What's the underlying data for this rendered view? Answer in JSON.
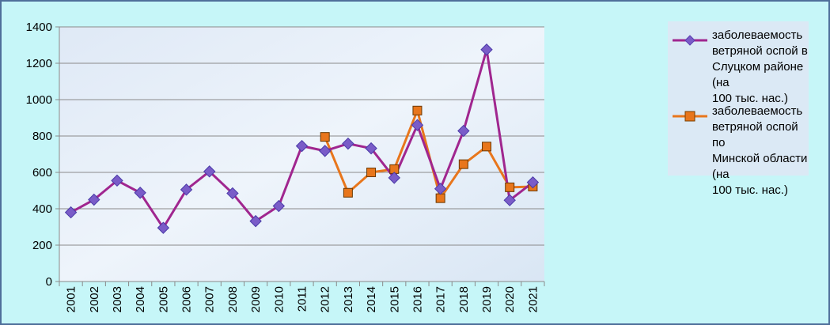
{
  "chart_data": {
    "type": "line",
    "title": "",
    "xlabel": "",
    "ylabel": "",
    "ylim": [
      0,
      1400
    ],
    "yticks": [
      "0",
      "200",
      "400",
      "600",
      "800",
      "1000",
      "1200",
      "1400"
    ],
    "categories": [
      "2001",
      "2002",
      "2003",
      "2004",
      "2005",
      "2006",
      "2007",
      "2008",
      "2009",
      "2010",
      "2011",
      "2012",
      "2013",
      "2014",
      "2015",
      "2016",
      "2017",
      "2018",
      "2019",
      "2020",
      "2021"
    ],
    "grid": true,
    "legend_position": "right",
    "series": [
      {
        "name": "заболеваемость ветряной оспой в Слуцком районе (на 100 тыс. нас.)",
        "color": "#a0268f",
        "marker": "diamond",
        "marker_fill": "#7a5cc8",
        "values": [
          380,
          450,
          555,
          488,
          295,
          505,
          605,
          485,
          332,
          415,
          745,
          718,
          758,
          732,
          570,
          860,
          510,
          828,
          1275,
          447,
          545
        ]
      },
      {
        "name": "заболеваемость ветряной оспой по Минской области (на 100 тыс. нас.)",
        "color": "#e8761c",
        "marker": "square",
        "marker_fill": "#e8761c",
        "values": [
          null,
          null,
          null,
          null,
          null,
          null,
          null,
          null,
          null,
          null,
          null,
          795,
          488,
          600,
          618,
          940,
          458,
          645,
          742,
          518,
          522
        ]
      }
    ],
    "legend": {
      "item1": [
        "заболеваемость",
        "ветряной оспой в",
        "Слуцком районе (на",
        "100 тыс. нас.)"
      ],
      "item2": [
        "заболеваемость",
        "ветряной оспой по",
        "Минской области (на",
        "100 тыс. нас.)"
      ]
    }
  }
}
